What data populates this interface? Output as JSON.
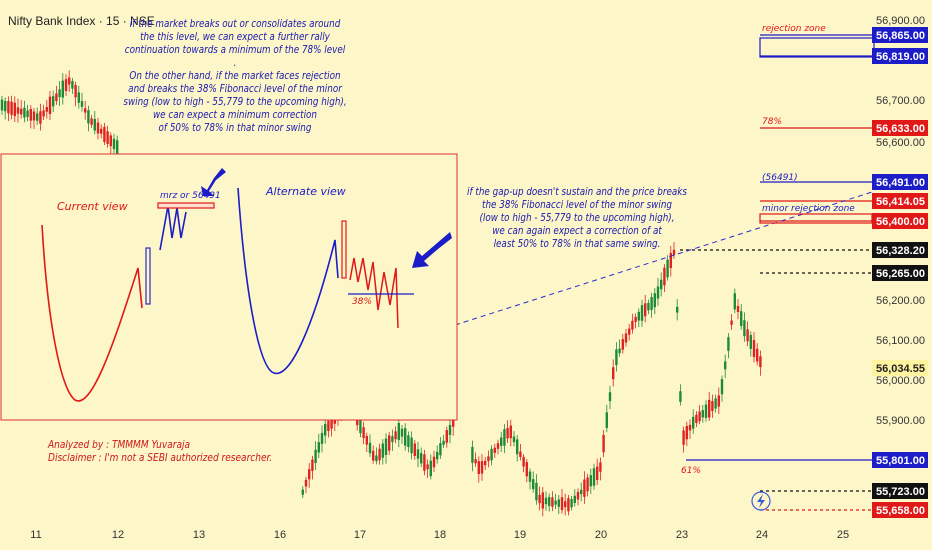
{
  "symbol": "Nifty Bank Index · 15 · NSE",
  "notes": {
    "top": [
      "If the market breaks out or consolidates around",
      "the this level, we can expect a further rally",
      "continuation towards a minimum of the 78% level",
      ".",
      "On the other hand, if the market faces rejection",
      "and breaks the 38% Fibonacci level of the minor",
      "swing (low to high - 55,779 to the upcoming high),",
      "we can expect a minimum correction",
      "of 50% to 78% in that minor swing"
    ],
    "middle": [
      "if the gap-up doesn't sustain and the price breaks",
      "the 38% Fibonacci level of the minor swing",
      "(low to high - 55,779 to the upcoming high),",
      "we can again expect a correction of at",
      "least 50% to 78% in that same swing."
    ],
    "author": [
      "Analyzed by : TMMMM Yuvaraja",
      "Disclaimer : I'm not a SEBI authorized researcher."
    ]
  },
  "inset": {
    "current_view": "Current view",
    "alternate_view": "Alternate view",
    "mrz_label": "mrz or 56491",
    "fib_label": "38%"
  },
  "zones": {
    "rejection_zone": "rejection zone",
    "level_78": "78%",
    "level_56491": "(56491)",
    "minor_rejection_zone": "minor rejection zone",
    "fib_61": "61%"
  },
  "colors": {
    "background": "#fdf6c8",
    "up": "#1d8a3a",
    "down": "#e02222",
    "note_blue": "#1a1ab0",
    "zone_blue": "#1c1cc8",
    "zone_red": "#e01818",
    "current_price": "#fff3a0"
  },
  "chart_data": {
    "type": "candlestick",
    "price_axis": {
      "range": [
        55640,
        56925
      ],
      "ticks": [
        56900,
        56700,
        56600,
        56200,
        56100,
        56000,
        55900
      ],
      "tick_labels": [
        "56,900.00",
        "56,700.00",
        "56,600.00",
        "56,200.00",
        "56,100.00",
        "56,000.00",
        "55,900.00"
      ]
    },
    "date_axis": {
      "labels": [
        "11",
        "12",
        "13",
        "16",
        "17",
        "18",
        "19",
        "20",
        "23",
        "24",
        "25"
      ]
    },
    "price_labels": [
      {
        "value": 56865,
        "text": "56,865.00",
        "style": "blue"
      },
      {
        "value": 56819,
        "text": "56,819.00",
        "style": "blue"
      },
      {
        "value": 56633,
        "text": "56,633.00",
        "style": "red"
      },
      {
        "value": 56491,
        "text": "56,491.00",
        "style": "blue"
      },
      {
        "value": 56414.05,
        "text": "56,414.05",
        "style": "red"
      },
      {
        "value": 56400,
        "text": "56,400.00",
        "style": "red"
      },
      {
        "value": 56328.2,
        "text": "56,328.20",
        "style": "dark"
      },
      {
        "value": 56265,
        "text": "56,265.00",
        "style": "dark"
      },
      {
        "value": 56034.55,
        "text": "56,034.55",
        "style": "current"
      },
      {
        "value": 55801,
        "text": "55,801.00",
        "style": "blue"
      },
      {
        "value": 55723,
        "text": "55,723.00",
        "style": "dark"
      },
      {
        "value": 55658,
        "text": "55,658.00",
        "style": "red"
      }
    ]
  }
}
